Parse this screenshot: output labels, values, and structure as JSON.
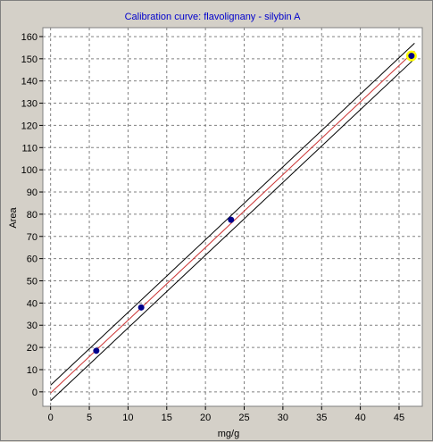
{
  "chart_data": {
    "type": "scatter",
    "title": "Calibration curve: flavolignany - silybin A",
    "xlabel": "mg/g",
    "ylabel": "Area",
    "xlim": [
      -1,
      48
    ],
    "ylim": [
      -6.5,
      164
    ],
    "x_ticks": [
      0,
      5,
      10,
      15,
      20,
      25,
      30,
      35,
      40,
      45
    ],
    "y_ticks": [
      0,
      10,
      20,
      30,
      40,
      50,
      60,
      70,
      80,
      90,
      100,
      110,
      120,
      130,
      140,
      150,
      160
    ],
    "grid": true,
    "series": [
      {
        "points": [
          {
            "x": 5.9,
            "y": 18.5
          },
          {
            "x": 11.7,
            "y": 38.0
          },
          {
            "x": 23.3,
            "y": 77.5
          },
          {
            "x": 46.6,
            "y": 151.3
          }
        ],
        "highlighted_point_index": 3
      }
    ],
    "regression": {
      "x_start": 0,
      "x_end": 47,
      "y_start": -0.5,
      "y_end": 153.5
    },
    "confidence_band": {
      "half_width": 3.5
    },
    "colors": {
      "background": "#d4d0c8",
      "plot_area": "#ffffff",
      "points": "#00008b",
      "regression": "#cc3333",
      "band": "#000000",
      "highlight": "#ffff00",
      "title": "#0000cc"
    }
  }
}
